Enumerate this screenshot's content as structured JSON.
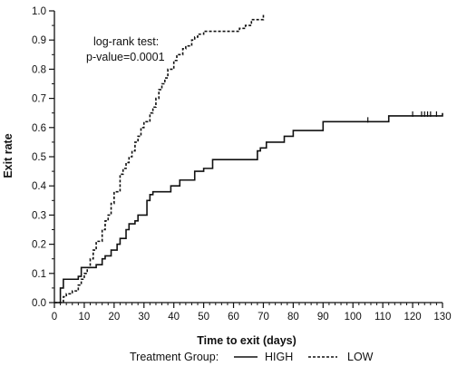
{
  "chart_data": {
    "type": "line",
    "subtype": "kaplan-meier step",
    "xlabel": "Time to exit (days)",
    "ylabel": "Exit rate",
    "xlim": [
      0,
      130
    ],
    "ylim": [
      0,
      1.0
    ],
    "xticks": [
      0,
      10,
      20,
      30,
      40,
      50,
      60,
      70,
      80,
      90,
      100,
      110,
      120,
      130
    ],
    "yticks": [
      0.0,
      0.1,
      0.2,
      0.3,
      0.4,
      0.5,
      0.6,
      0.7,
      0.8,
      0.9,
      1.0
    ],
    "grid": false,
    "annotation": {
      "line1": "log-rank test:",
      "line2": "p-value=0.0001"
    },
    "legend": {
      "title": "Treatment Group:",
      "position": "bottom"
    },
    "series": [
      {
        "name": "HIGH",
        "style": "solid",
        "color": "#111111",
        "x": [
          0,
          2,
          3,
          8,
          9,
          13,
          14,
          16,
          17,
          19,
          21,
          22,
          24,
          25,
          27,
          28,
          31,
          32,
          33,
          39,
          42,
          47,
          50,
          53,
          67,
          68,
          69,
          71,
          77,
          80,
          90,
          112,
          130
        ],
        "y": [
          0,
          0.05,
          0.08,
          0.09,
          0.12,
          0.12,
          0.13,
          0.15,
          0.16,
          0.18,
          0.2,
          0.22,
          0.25,
          0.27,
          0.28,
          0.3,
          0.35,
          0.37,
          0.38,
          0.4,
          0.42,
          0.45,
          0.46,
          0.49,
          0.49,
          0.52,
          0.53,
          0.55,
          0.57,
          0.59,
          0.62,
          0.64,
          0.65
        ],
        "censor_x": [
          105,
          120,
          123,
          124,
          125,
          126,
          128
        ]
      },
      {
        "name": "LOW",
        "style": "dashed",
        "color": "#111111",
        "x": [
          0,
          3,
          4,
          6,
          8,
          9,
          10,
          11,
          12,
          13,
          14,
          16,
          17,
          18,
          19,
          20,
          22,
          23,
          24,
          25,
          26,
          27,
          28,
          29,
          30,
          32,
          33,
          34,
          35,
          36,
          37,
          38,
          40,
          41,
          43,
          44,
          46,
          47,
          48,
          50,
          62,
          64,
          66,
          70
        ],
        "y": [
          0,
          0.02,
          0.03,
          0.04,
          0.06,
          0.08,
          0.1,
          0.12,
          0.15,
          0.18,
          0.21,
          0.25,
          0.28,
          0.3,
          0.34,
          0.38,
          0.44,
          0.46,
          0.48,
          0.5,
          0.52,
          0.55,
          0.57,
          0.6,
          0.62,
          0.65,
          0.67,
          0.7,
          0.73,
          0.75,
          0.77,
          0.8,
          0.83,
          0.85,
          0.87,
          0.88,
          0.9,
          0.91,
          0.92,
          0.93,
          0.94,
          0.95,
          0.97,
          0.99
        ],
        "censor_x": []
      }
    ]
  }
}
